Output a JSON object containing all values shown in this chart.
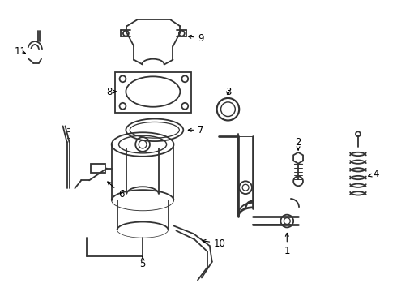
{
  "bg_color": "#ffffff",
  "line_color": "#333333",
  "lw": 1.3,
  "figsize": [
    4.9,
    3.6
  ],
  "dpi": 100
}
